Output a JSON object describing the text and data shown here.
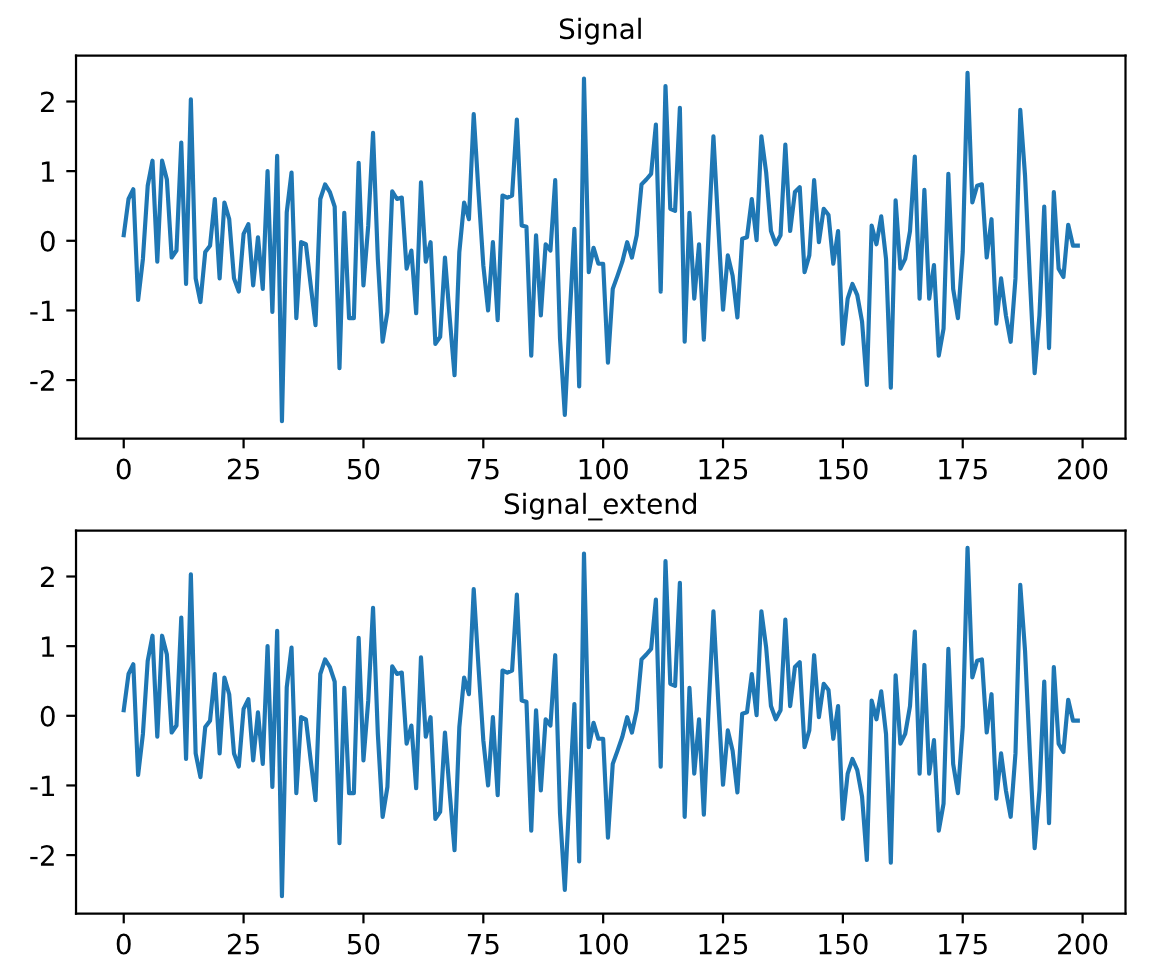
{
  "chart_data": [
    {
      "type": "line",
      "title": "Signal",
      "x": [
        0,
        1,
        2,
        3,
        4,
        5,
        6,
        7,
        8,
        9,
        10,
        11,
        12,
        13,
        14,
        15,
        16,
        17,
        18,
        19,
        20,
        21,
        22,
        23,
        24,
        25,
        26,
        27,
        28,
        29,
        30,
        31,
        32,
        33,
        34,
        35,
        36,
        37,
        38,
        39,
        40,
        41,
        42,
        43,
        44,
        45,
        46,
        47,
        48,
        49,
        50,
        51,
        52,
        53,
        54,
        55,
        56,
        57,
        58,
        59,
        60,
        61,
        62,
        63,
        64,
        65,
        66,
        67,
        68,
        69,
        70,
        71,
        72,
        73,
        74,
        75,
        76,
        77,
        78,
        79,
        80,
        81,
        82,
        83,
        84,
        85,
        86,
        87,
        88,
        89,
        90,
        91,
        92,
        93,
        94,
        95,
        96,
        97,
        98,
        99,
        100,
        101,
        102,
        103,
        104,
        105,
        106,
        107,
        108,
        109,
        110,
        111,
        112,
        113,
        114,
        115,
        116,
        117,
        118,
        119,
        120,
        121,
        122,
        123,
        124,
        125,
        126,
        127,
        128,
        129,
        130,
        131,
        132,
        133,
        134,
        135,
        136,
        137,
        138,
        139,
        140,
        141,
        142,
        143,
        144,
        145,
        146,
        147,
        148,
        149,
        150,
        151,
        152,
        153,
        154,
        155,
        156,
        157,
        158,
        159,
        160,
        161,
        162,
        163,
        164,
        165,
        166,
        167,
        168,
        169,
        170,
        171,
        172,
        173,
        174,
        175,
        176,
        177,
        178,
        179,
        180,
        181,
        182,
        183,
        184,
        185,
        186,
        187,
        188,
        189,
        190,
        191,
        192,
        193,
        194,
        195,
        196,
        197,
        198,
        199
      ],
      "series": [
        {
          "color": "#1f77b4",
          "values": [
            0.08,
            0.6,
            0.74,
            -0.85,
            -0.26,
            0.79,
            1.15,
            -0.3,
            1.15,
            0.88,
            -0.24,
            -0.14,
            1.41,
            -0.62,
            2.03,
            -0.54,
            -0.88,
            -0.16,
            -0.07,
            0.6,
            -0.54,
            0.55,
            0.31,
            -0.54,
            -0.73,
            0.1,
            0.24,
            -0.64,
            0.05,
            -0.69,
            1.0,
            -1.02,
            1.22,
            -2.59,
            0.41,
            0.98,
            -1.11,
            -0.02,
            -0.05,
            -0.64,
            -1.21,
            0.6,
            0.81,
            0.7,
            0.49,
            -1.83,
            0.4,
            -1.11,
            -1.11,
            1.12,
            -0.64,
            0.22,
            1.55,
            -0.26,
            -1.45,
            -1.02,
            0.71,
            0.6,
            0.62,
            -0.4,
            -0.14,
            -1.04,
            0.84,
            -0.3,
            -0.02,
            -1.48,
            -1.38,
            -0.24,
            -1.11,
            -1.93,
            -0.16,
            0.55,
            0.31,
            1.82,
            0.7,
            -0.35,
            -1.0,
            -0.02,
            -1.14,
            0.65,
            0.62,
            0.65,
            1.74,
            0.22,
            0.2,
            -1.65,
            0.08,
            -1.07,
            -0.05,
            -0.14,
            0.87,
            -1.4,
            -2.5,
            -1.11,
            0.17,
            -2.09,
            2.33,
            -0.45,
            -0.1,
            -0.33,
            -0.33,
            -1.75,
            -0.69,
            -0.5,
            -0.3,
            -0.02,
            -0.24,
            0.08,
            0.81,
            0.88,
            0.96,
            1.67,
            -0.73,
            2.22,
            0.46,
            0.43,
            1.91,
            -1.45,
            0.4,
            -0.83,
            -0.05,
            -1.42,
            0.12,
            1.5,
            0.22,
            -0.99,
            -0.21,
            -0.5,
            -1.1,
            0.03,
            0.05,
            0.6,
            0.01,
            1.5,
            0.98,
            0.14,
            -0.05,
            0.08,
            1.38,
            0.14,
            0.7,
            0.77,
            -0.45,
            -0.21,
            0.87,
            -0.02,
            0.46,
            0.37,
            -0.33,
            0.14,
            -1.48,
            -0.83,
            -0.62,
            -0.78,
            -1.16,
            -2.07,
            0.22,
            -0.05,
            0.35,
            -0.26,
            -2.11,
            0.58,
            -0.4,
            -0.26,
            0.14,
            1.21,
            -0.83,
            0.73,
            -0.83,
            -0.35,
            -1.65,
            -1.26,
            0.96,
            -0.69,
            -1.11,
            -0.16,
            2.41,
            0.55,
            0.79,
            0.81,
            -0.24,
            0.31,
            -1.19,
            -0.54,
            -1.07,
            -1.45,
            -0.54,
            1.88,
            0.93,
            -0.54,
            -1.9,
            -1.07,
            0.49,
            -1.54,
            0.7,
            -0.4,
            -0.52,
            0.23,
            -0.07,
            -0.07
          ]
        }
      ],
      "xlim": [
        -9.95,
        208.95
      ],
      "ylim": [
        -2.84,
        2.66
      ],
      "xticks": [
        0,
        25,
        50,
        75,
        100,
        125,
        150,
        175,
        200
      ],
      "yticks": [
        -2,
        -1,
        0,
        1,
        2
      ],
      "grid": false,
      "marker": "none",
      "line_style": "solid"
    },
    {
      "type": "line",
      "title": "Signal_extend",
      "x": [
        0,
        1,
        2,
        3,
        4,
        5,
        6,
        7,
        8,
        9,
        10,
        11,
        12,
        13,
        14,
        15,
        16,
        17,
        18,
        19,
        20,
        21,
        22,
        23,
        24,
        25,
        26,
        27,
        28,
        29,
        30,
        31,
        32,
        33,
        34,
        35,
        36,
        37,
        38,
        39,
        40,
        41,
        42,
        43,
        44,
        45,
        46,
        47,
        48,
        49,
        50,
        51,
        52,
        53,
        54,
        55,
        56,
        57,
        58,
        59,
        60,
        61,
        62,
        63,
        64,
        65,
        66,
        67,
        68,
        69,
        70,
        71,
        72,
        73,
        74,
        75,
        76,
        77,
        78,
        79,
        80,
        81,
        82,
        83,
        84,
        85,
        86,
        87,
        88,
        89,
        90,
        91,
        92,
        93,
        94,
        95,
        96,
        97,
        98,
        99,
        100,
        101,
        102,
        103,
        104,
        105,
        106,
        107,
        108,
        109,
        110,
        111,
        112,
        113,
        114,
        115,
        116,
        117,
        118,
        119,
        120,
        121,
        122,
        123,
        124,
        125,
        126,
        127,
        128,
        129,
        130,
        131,
        132,
        133,
        134,
        135,
        136,
        137,
        138,
        139,
        140,
        141,
        142,
        143,
        144,
        145,
        146,
        147,
        148,
        149,
        150,
        151,
        152,
        153,
        154,
        155,
        156,
        157,
        158,
        159,
        160,
        161,
        162,
        163,
        164,
        165,
        166,
        167,
        168,
        169,
        170,
        171,
        172,
        173,
        174,
        175,
        176,
        177,
        178,
        179,
        180,
        181,
        182,
        183,
        184,
        185,
        186,
        187,
        188,
        189,
        190,
        191,
        192,
        193,
        194,
        195,
        196,
        197,
        198,
        199
      ],
      "series": [
        {
          "color": "#1f77b4",
          "values": [
            0.08,
            0.6,
            0.74,
            -0.85,
            -0.26,
            0.79,
            1.15,
            -0.3,
            1.15,
            0.88,
            -0.24,
            -0.14,
            1.41,
            -0.62,
            2.03,
            -0.54,
            -0.88,
            -0.16,
            -0.07,
            0.6,
            -0.54,
            0.55,
            0.31,
            -0.54,
            -0.73,
            0.1,
            0.24,
            -0.64,
            0.05,
            -0.69,
            1.0,
            -1.02,
            1.22,
            -2.59,
            0.41,
            0.98,
            -1.11,
            -0.02,
            -0.05,
            -0.64,
            -1.21,
            0.6,
            0.81,
            0.7,
            0.49,
            -1.83,
            0.4,
            -1.11,
            -1.11,
            1.12,
            -0.64,
            0.22,
            1.55,
            -0.26,
            -1.45,
            -1.02,
            0.71,
            0.6,
            0.62,
            -0.4,
            -0.14,
            -1.04,
            0.84,
            -0.3,
            -0.02,
            -1.48,
            -1.38,
            -0.24,
            -1.11,
            -1.93,
            -0.16,
            0.55,
            0.31,
            1.82,
            0.7,
            -0.35,
            -1.0,
            -0.02,
            -1.14,
            0.65,
            0.62,
            0.65,
            1.74,
            0.22,
            0.2,
            -1.65,
            0.08,
            -1.07,
            -0.05,
            -0.14,
            0.87,
            -1.4,
            -2.5,
            -1.11,
            0.17,
            -2.09,
            2.33,
            -0.45,
            -0.1,
            -0.33,
            -0.33,
            -1.75,
            -0.69,
            -0.5,
            -0.3,
            -0.02,
            -0.24,
            0.08,
            0.81,
            0.88,
            0.96,
            1.67,
            -0.73,
            2.22,
            0.46,
            0.43,
            1.91,
            -1.45,
            0.4,
            -0.83,
            -0.05,
            -1.42,
            0.12,
            1.5,
            0.22,
            -0.99,
            -0.21,
            -0.5,
            -1.1,
            0.03,
            0.05,
            0.6,
            0.01,
            1.5,
            0.98,
            0.14,
            -0.05,
            0.08,
            1.38,
            0.14,
            0.7,
            0.77,
            -0.45,
            -0.21,
            0.87,
            -0.02,
            0.46,
            0.37,
            -0.33,
            0.14,
            -1.48,
            -0.83,
            -0.62,
            -0.78,
            -1.16,
            -2.07,
            0.22,
            -0.05,
            0.35,
            -0.26,
            -2.11,
            0.58,
            -0.4,
            -0.26,
            0.14,
            1.21,
            -0.83,
            0.73,
            -0.83,
            -0.35,
            -1.65,
            -1.26,
            0.96,
            -0.69,
            -1.11,
            -0.16,
            2.41,
            0.55,
            0.79,
            0.81,
            -0.24,
            0.31,
            -1.19,
            -0.54,
            -1.07,
            -1.45,
            -0.54,
            1.88,
            0.93,
            -0.54,
            -1.9,
            -1.07,
            0.49,
            -1.54,
            0.7,
            -0.4,
            -0.52,
            0.23,
            -0.07,
            -0.07
          ]
        }
      ],
      "xlim": [
        -9.95,
        208.95
      ],
      "ylim": [
        -2.84,
        2.66
      ],
      "xticks": [
        0,
        25,
        50,
        75,
        100,
        125,
        150,
        175,
        200
      ],
      "yticks": [
        -2,
        -1,
        0,
        1,
        2
      ],
      "grid": false,
      "marker": "none",
      "line_style": "solid"
    }
  ]
}
